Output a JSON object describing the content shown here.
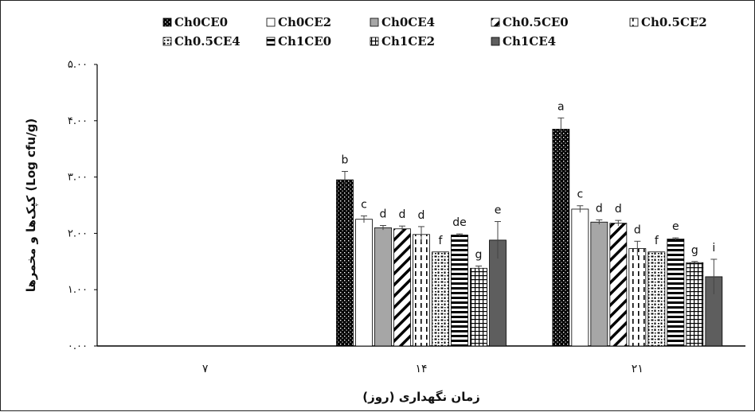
{
  "chart_data": {
    "type": "bar",
    "title": "",
    "xlabel": "زمان نگهداری (روز)",
    "ylabel": "کپک‌ها و مخمرها (Log cfu/g)",
    "ylim": [
      0,
      5
    ],
    "yticks": [
      "۰.۰۰",
      "۱.۰۰",
      "۲.۰۰",
      "۳.۰۰",
      "۴.۰۰",
      "۵.۰۰"
    ],
    "categories": [
      "۷",
      "۱۴",
      "۲۱"
    ],
    "legend_position": "top",
    "grid": false,
    "series": [
      {
        "name": "Ch0CE0",
        "pattern": "dots-dark",
        "values": [
          0,
          2.95,
          3.85
        ],
        "errors": [
          0,
          0.15,
          0.2
        ],
        "labels": [
          "",
          "b",
          "a"
        ]
      },
      {
        "name": "Ch0CE2",
        "pattern": "white",
        "values": [
          0,
          2.25,
          2.43
        ],
        "errors": [
          0,
          0.06,
          0.06
        ],
        "labels": [
          "",
          "c",
          "c"
        ]
      },
      {
        "name": "Ch0CE4",
        "pattern": "gray",
        "values": [
          0,
          2.1,
          2.2
        ],
        "errors": [
          0,
          0.04,
          0.04
        ],
        "labels": [
          "",
          "d",
          "d"
        ]
      },
      {
        "name": "Ch0.5CE0",
        "pattern": "diag-wide",
        "values": [
          0,
          2.08,
          2.18
        ],
        "errors": [
          0,
          0.05,
          0.05
        ],
        "labels": [
          "",
          "d",
          "d"
        ]
      },
      {
        "name": "Ch0.5CE2",
        "pattern": "dashed-v",
        "values": [
          0,
          1.98,
          1.73
        ],
        "errors": [
          0,
          0.14,
          0.13
        ],
        "labels": [
          "",
          "d",
          "d"
        ]
      },
      {
        "name": "Ch0.5CE4",
        "pattern": "confetti",
        "values": [
          0,
          1.67,
          1.67
        ],
        "errors": [
          0,
          0,
          0
        ],
        "labels": [
          "",
          "f",
          "f"
        ]
      },
      {
        "name": "Ch1CE0",
        "pattern": "horiz",
        "values": [
          0,
          1.97,
          1.9
        ],
        "errors": [
          0,
          0.02,
          0.02
        ],
        "labels": [
          "",
          "de",
          "e"
        ]
      },
      {
        "name": "Ch1CE2",
        "pattern": "grid",
        "values": [
          0,
          1.38,
          1.48
        ],
        "errors": [
          0,
          0.04,
          0.02
        ],
        "labels": [
          "",
          "g",
          "g"
        ]
      },
      {
        "name": "Ch1CE4",
        "pattern": "dark-gray",
        "values": [
          0,
          1.88,
          1.23
        ],
        "errors": [
          0,
          0.33,
          0.31
        ],
        "labels": [
          "",
          "e",
          "i"
        ]
      }
    ]
  }
}
